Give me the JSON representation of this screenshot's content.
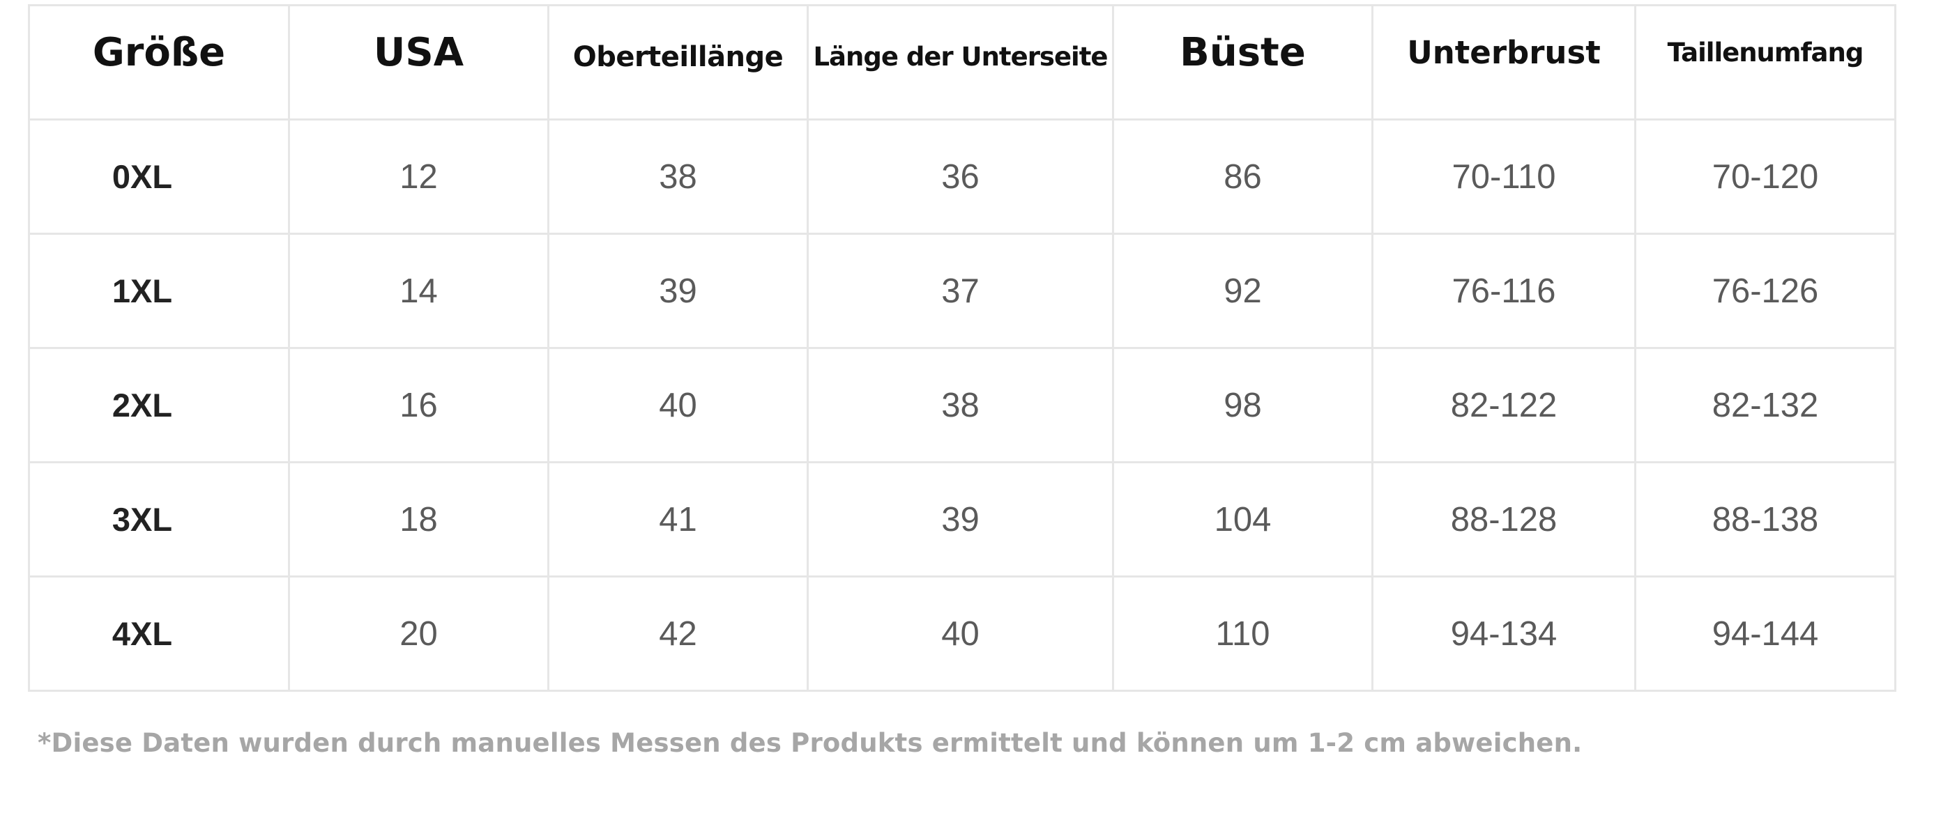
{
  "size_chart": {
    "headers": [
      "Größe",
      "USA",
      "Oberteillänge",
      "Länge der Unterseite",
      "Büste",
      "Unterbrust",
      "Taillenumfang"
    ],
    "rows": [
      [
        "0XL",
        "12",
        "38",
        "36",
        "86",
        "70-110",
        "70-120"
      ],
      [
        "1XL",
        "14",
        "39",
        "37",
        "92",
        "76-116",
        "76-126"
      ],
      [
        "2XL",
        "16",
        "40",
        "38",
        "98",
        "82-122",
        "82-132"
      ],
      [
        "3XL",
        "18",
        "41",
        "39",
        "104",
        "88-128",
        "88-138"
      ],
      [
        "4XL",
        "20",
        "42",
        "40",
        "110",
        "94-134",
        "94-144"
      ]
    ]
  },
  "footnote": "*Diese Daten wurden durch manuelles Messen des Produkts ermittelt und können um 1-2 cm abweichen."
}
